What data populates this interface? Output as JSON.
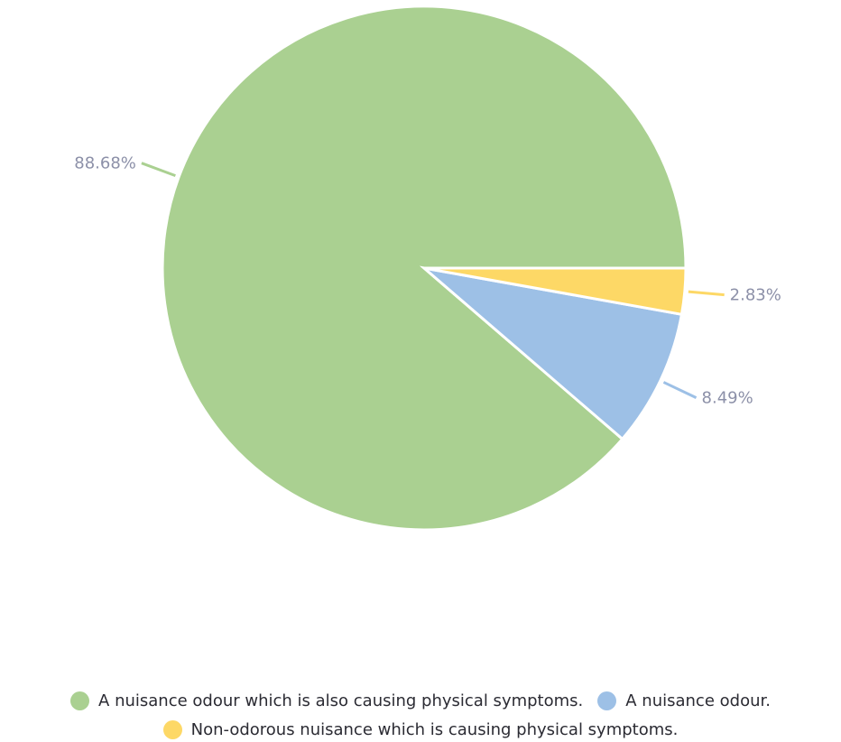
{
  "chart_data": {
    "type": "pie",
    "title": "",
    "slices": [
      {
        "name": "A nuisance odour which is also causing physical symptoms.",
        "value": 88.68,
        "label": "88.68%",
        "color": "#aad091"
      },
      {
        "name": "A nuisance odour.",
        "value": 8.49,
        "label": "8.49%",
        "color": "#9dc0e6"
      },
      {
        "name": "Non-odorous nuisance which is causing physical symptoms.",
        "value": 2.83,
        "label": "2.83%",
        "color": "#fdd866"
      }
    ],
    "start_angle": "3 o'clock, counter-clockwise for largest slice",
    "legend_position": "bottom"
  }
}
